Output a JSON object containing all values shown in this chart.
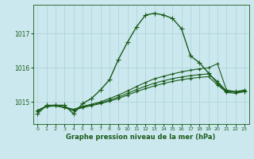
{
  "title": "",
  "xlabel": "Graphe pression niveau de la mer (hPa)",
  "ylabel": "",
  "background_color": "#cce8ef",
  "grid_color": "#aad0d8",
  "line_color": "#1a5c1a",
  "yticks": [
    1015,
    1016,
    1017
  ],
  "ylim": [
    1014.35,
    1017.85
  ],
  "xlim": [
    -0.5,
    23.5
  ],
  "xticks": [
    0,
    1,
    2,
    3,
    4,
    5,
    6,
    7,
    8,
    9,
    10,
    11,
    12,
    13,
    14,
    15,
    16,
    17,
    18,
    19,
    20,
    21,
    22,
    23
  ],
  "series": [
    {
      "x": [
        0,
        1,
        2,
        3,
        4,
        5,
        6,
        7,
        8,
        9,
        10,
        11,
        12,
        13,
        14,
        15,
        16,
        17,
        18,
        19,
        20,
        21,
        22,
        23
      ],
      "y": [
        1014.65,
        1014.9,
        1014.9,
        1014.9,
        1014.65,
        1014.95,
        1015.1,
        1015.35,
        1015.65,
        1016.25,
        1016.75,
        1017.2,
        1017.55,
        1017.6,
        1017.55,
        1017.45,
        1017.15,
        1016.35,
        1016.15,
        1015.85,
        1015.55,
        1015.3,
        1015.3,
        1015.3
      ],
      "linestyle": "-",
      "marker": "+",
      "linewidth": 1.0,
      "markersize": 4
    },
    {
      "x": [
        0,
        1,
        2,
        3,
        4,
        5,
        6,
        7,
        8,
        9,
        10,
        11,
        12,
        13,
        14,
        15,
        16,
        17,
        18,
        19,
        20,
        21,
        22,
        23
      ],
      "y": [
        1014.75,
        1014.88,
        1014.9,
        1014.85,
        1014.78,
        1014.87,
        1014.93,
        1015.0,
        1015.1,
        1015.2,
        1015.32,
        1015.45,
        1015.57,
        1015.68,
        1015.75,
        1015.82,
        1015.88,
        1015.93,
        1015.97,
        1016.0,
        1016.12,
        1015.35,
        1015.3,
        1015.35
      ],
      "linestyle": "-",
      "marker": "+",
      "linewidth": 0.8,
      "markersize": 3
    },
    {
      "x": [
        0,
        1,
        2,
        3,
        4,
        5,
        6,
        7,
        8,
        9,
        10,
        11,
        12,
        13,
        14,
        15,
        16,
        17,
        18,
        19,
        20,
        21,
        22,
        23
      ],
      "y": [
        1014.75,
        1014.87,
        1014.9,
        1014.84,
        1014.77,
        1014.85,
        1014.91,
        1014.97,
        1015.05,
        1015.14,
        1015.25,
        1015.36,
        1015.46,
        1015.55,
        1015.62,
        1015.68,
        1015.73,
        1015.77,
        1015.8,
        1015.82,
        1015.6,
        1015.32,
        1015.28,
        1015.32
      ],
      "linestyle": "-",
      "marker": "+",
      "linewidth": 0.8,
      "markersize": 3
    },
    {
      "x": [
        0,
        1,
        2,
        3,
        4,
        5,
        6,
        7,
        8,
        9,
        10,
        11,
        12,
        13,
        14,
        15,
        16,
        17,
        18,
        19,
        20,
        21,
        22,
        23
      ],
      "y": [
        1014.73,
        1014.86,
        1014.88,
        1014.83,
        1014.75,
        1014.83,
        1014.89,
        1014.95,
        1015.02,
        1015.1,
        1015.2,
        1015.3,
        1015.39,
        1015.47,
        1015.54,
        1015.6,
        1015.65,
        1015.69,
        1015.72,
        1015.74,
        1015.5,
        1015.28,
        1015.25,
        1015.3
      ],
      "linestyle": "-",
      "marker": "+",
      "linewidth": 0.8,
      "markersize": 3
    }
  ]
}
